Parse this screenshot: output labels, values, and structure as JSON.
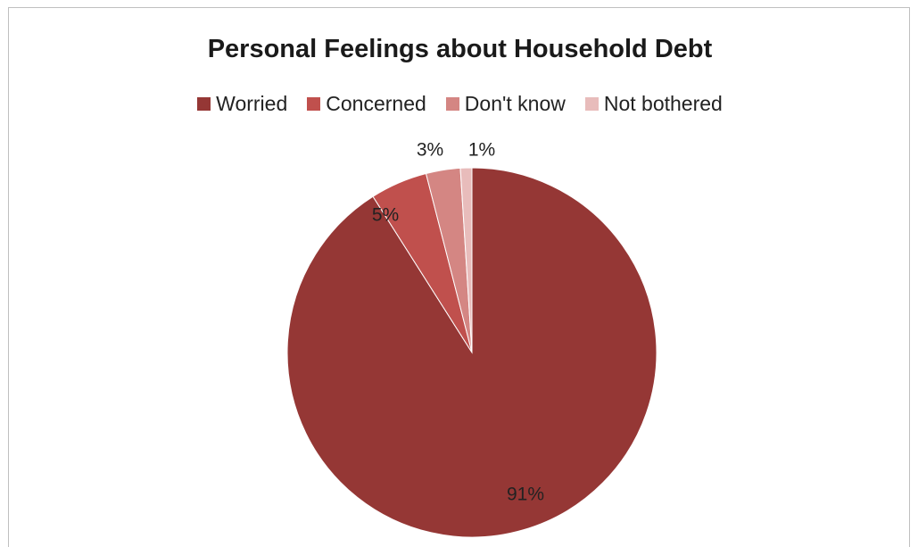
{
  "chart_data": {
    "type": "pie",
    "title": "Personal Feelings about Household Debt",
    "legend_position": "top",
    "slices": [
      {
        "name": "Worried",
        "value": 91,
        "label": "91%",
        "color": "#953735"
      },
      {
        "name": "Concerned",
        "value": 5,
        "label": "5%",
        "color": "#c0504d"
      },
      {
        "name": "Don't know",
        "value": 3,
        "label": "3%",
        "color": "#d48683"
      },
      {
        "name": "Not bothered",
        "value": 1,
        "label": "1%",
        "color": "#e8bcbb"
      }
    ]
  }
}
